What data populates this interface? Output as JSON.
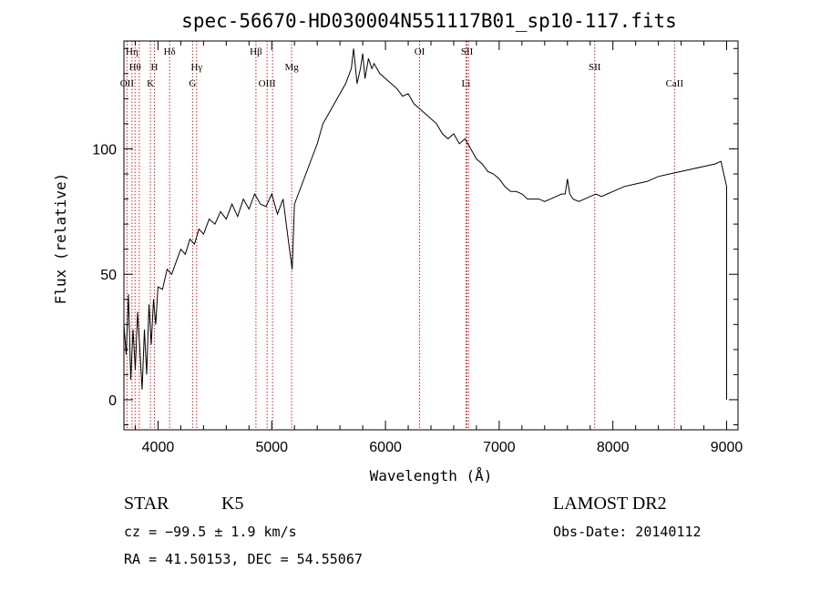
{
  "chart_data": {
    "type": "line",
    "title": "spec-56670-HD030004N551117B01_sp10-117.fits",
    "xlabel": "Wavelength (Å)",
    "ylabel": "Flux (relative)",
    "xlim": [
      3700,
      9100
    ],
    "ylim": [
      -12,
      143
    ],
    "x_ticks": [
      4000,
      5000,
      6000,
      7000,
      8000,
      9000
    ],
    "y_ticks": [
      0,
      50,
      100
    ],
    "grid": false,
    "line_color": "#000000",
    "marker_color": "#cc2222",
    "series": [
      {
        "x": [
          3700,
          3720,
          3740,
          3760,
          3780,
          3800,
          3820,
          3840,
          3860,
          3880,
          3900,
          3920,
          3940,
          3960,
          3980,
          4000,
          4040,
          4080,
          4120,
          4160,
          4200,
          4240,
          4280,
          4320,
          4360,
          4400,
          4450,
          4500,
          4550,
          4600,
          4650,
          4700,
          4750,
          4800,
          4850,
          4900,
          4950,
          5000,
          5050,
          5100,
          5150,
          5180,
          5200,
          5250,
          5300,
          5350,
          5400,
          5450,
          5500,
          5550,
          5600,
          5650,
          5700,
          5720,
          5750,
          5780,
          5800,
          5820,
          5850,
          5880,
          5900,
          5950,
          6000,
          6050,
          6100,
          6150,
          6200,
          6250,
          6300,
          6350,
          6400,
          6450,
          6500,
          6550,
          6600,
          6650,
          6700,
          6750,
          6800,
          6850,
          6900,
          6950,
          7000,
          7050,
          7100,
          7150,
          7200,
          7250,
          7300,
          7350,
          7400,
          7450,
          7500,
          7550,
          7580,
          7600,
          7620,
          7650,
          7700,
          7750,
          7800,
          7850,
          7900,
          7950,
          8000,
          8100,
          8200,
          8300,
          8400,
          8500,
          8600,
          8700,
          8800,
          8900,
          8950,
          9000,
          9000,
          9000
        ],
        "y": [
          30,
          18,
          42,
          8,
          28,
          12,
          35,
          20,
          4,
          28,
          10,
          38,
          22,
          40,
          30,
          45,
          44,
          52,
          50,
          55,
          60,
          58,
          64,
          62,
          68,
          66,
          72,
          70,
          75,
          72,
          78,
          73,
          80,
          76,
          82,
          78,
          77,
          82,
          74,
          80,
          62,
          52,
          78,
          84,
          90,
          96,
          102,
          110,
          114,
          118,
          122,
          126,
          132,
          140,
          126,
          132,
          138,
          128,
          136,
          132,
          134,
          130,
          128,
          126,
          124,
          121,
          122,
          118,
          116,
          114,
          112,
          110,
          106,
          104,
          106,
          102,
          104,
          100,
          96,
          94,
          91,
          90,
          88,
          85,
          83,
          83,
          82,
          80,
          80,
          80,
          79,
          80,
          81,
          82,
          82,
          88,
          82,
          80,
          79,
          80,
          81,
          82,
          81,
          82,
          83,
          85,
          86,
          87,
          89,
          90,
          91,
          92,
          93,
          94,
          95,
          85,
          0,
          20
        ]
      }
    ],
    "line_markers": [
      {
        "wavelength": 3727,
        "label": "OII",
        "row": 3
      },
      {
        "wavelength": 3771,
        "label": "Hη",
        "row": 1
      },
      {
        "wavelength": 3798,
        "label": "Hθ",
        "row": 2
      },
      {
        "wavelength": 3835,
        "label": "",
        "row": 0
      },
      {
        "wavelength": 3933,
        "label": "K",
        "row": 3
      },
      {
        "wavelength": 3968,
        "label": "H",
        "row": 2
      },
      {
        "wavelength": 4102,
        "label": "Hδ",
        "row": 1
      },
      {
        "wavelength": 4304,
        "label": "G",
        "row": 3
      },
      {
        "wavelength": 4340,
        "label": "Hγ",
        "row": 2
      },
      {
        "wavelength": 4861,
        "label": "Hβ",
        "row": 1
      },
      {
        "wavelength": 4959,
        "label": "OIII",
        "row": 3
      },
      {
        "wavelength": 5007,
        "label": "",
        "row": 0
      },
      {
        "wavelength": 5175,
        "label": "Mg",
        "row": 2
      },
      {
        "wavelength": 6300,
        "label": "OI",
        "row": 1
      },
      {
        "wavelength": 6708,
        "label": "Li",
        "row": 3
      },
      {
        "wavelength": 6717,
        "label": "SII",
        "row": 1
      },
      {
        "wavelength": 6731,
        "label": "",
        "row": 0
      },
      {
        "wavelength": 7840,
        "label": "SII",
        "row": 2
      },
      {
        "wavelength": 8542,
        "label": "CaII",
        "row": 3
      }
    ]
  },
  "info": {
    "object_class": "STAR",
    "subclass": "K5",
    "survey": "LAMOST DR2",
    "cz": "cz = −99.5 ± 1.9 km/s",
    "obs_date": "Obs-Date: 20140112",
    "coords": "RA =  41.50153, DEC =  54.55067"
  }
}
